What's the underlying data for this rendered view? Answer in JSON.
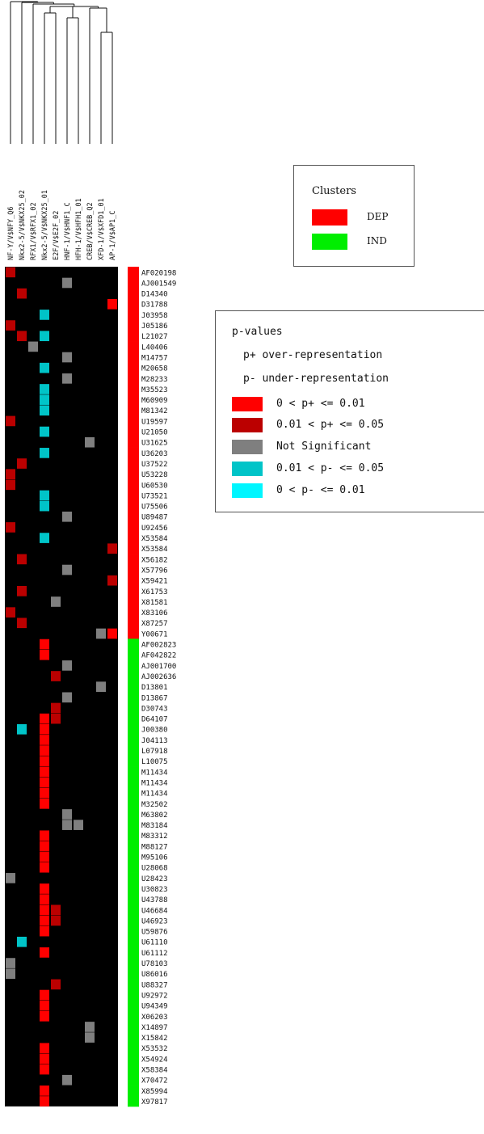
{
  "chart_data": {
    "type": "heatmap",
    "columns": [
      "NF-Y/V$NFY_Q6",
      "Nkx2-5/V$NKX25_02",
      "RFX1/V$RFX1_02",
      "Nkx2-5/V$NKX25_01",
      "E2F/V$E2F_02",
      "HNF-1/V$HNF1_C",
      "HFH-1/V$HFH1_01",
      "CREB/V$CREB_Q2",
      "XFD-1/V$XFD1_01",
      "AP-1/V$AP1_C"
    ],
    "rows": [
      "AF020198",
      "AJ001549",
      "D14340",
      "D31788",
      "J03958",
      "J05186",
      "L21027",
      "L40406",
      "M14757",
      "M20658",
      "M28233",
      "M35523",
      "M60909",
      "M81342",
      "U19597",
      "U21050",
      "U31625",
      "U36203",
      "U37522",
      "U53228",
      "U60530",
      "U73521",
      "U75506",
      "U89487",
      "U92456",
      "X53584",
      "X53584",
      "X56182",
      "X57796",
      "X59421",
      "X61753",
      "X81581",
      "X83106",
      "X87257",
      "Y00671",
      "AF002823",
      "AF042822",
      "AJ001700",
      "AJ002636",
      "D13801",
      "D13867",
      "D30743",
      "D64107",
      "J00380",
      "J04113",
      "L07918",
      "L10075",
      "M11434",
      "M11434",
      "M11434",
      "M32502",
      "M63802",
      "M83184",
      "M83312",
      "M88127",
      "M95106",
      "U28068",
      "U28423",
      "U30823",
      "U43788",
      "U46684",
      "U46923",
      "U59876",
      "U61110",
      "U61112",
      "U78103",
      "U86016",
      "U88327",
      "U92972",
      "U94349",
      "X06203",
      "X14897",
      "X15842",
      "X53532",
      "X54924",
      "X58384",
      "X70472",
      "X85994",
      "X97817"
    ],
    "row_clusters": [
      "DEP",
      "DEP",
      "DEP",
      "DEP",
      "DEP",
      "DEP",
      "DEP",
      "DEP",
      "DEP",
      "DEP",
      "DEP",
      "DEP",
      "DEP",
      "DEP",
      "DEP",
      "DEP",
      "DEP",
      "DEP",
      "DEP",
      "DEP",
      "DEP",
      "DEP",
      "DEP",
      "DEP",
      "DEP",
      "DEP",
      "DEP",
      "DEP",
      "DEP",
      "DEP",
      "DEP",
      "DEP",
      "DEP",
      "DEP",
      "DEP",
      "IND",
      "IND",
      "IND",
      "IND",
      "IND",
      "IND",
      "IND",
      "IND",
      "IND",
      "IND",
      "IND",
      "IND",
      "IND",
      "IND",
      "IND",
      "IND",
      "IND",
      "IND",
      "IND",
      "IND",
      "IND",
      "IND",
      "IND",
      "IND",
      "IND",
      "IND",
      "IND",
      "IND",
      "IND",
      "IND",
      "IND",
      "IND",
      "IND",
      "IND",
      "IND",
      "IND",
      "IND",
      "IND",
      "IND",
      "IND",
      "IND",
      "IND",
      "IND",
      "IND"
    ],
    "categories_note": "cell codes: 0 none, 1 = 0<p+<=0.01, 2 = 0.01<p+<=0.05, 3 = not significant, 4 = 0.01<p-<=0.05, 5 = 0<p-<=0.01",
    "cells": [
      [
        2,
        0,
        0,
        0,
        0,
        0,
        0,
        0,
        0,
        0
      ],
      [
        0,
        0,
        0,
        0,
        0,
        3,
        0,
        0,
        0,
        0
      ],
      [
        0,
        2,
        0,
        0,
        0,
        0,
        0,
        0,
        0,
        0
      ],
      [
        0,
        0,
        0,
        0,
        0,
        0,
        0,
        0,
        0,
        1
      ],
      [
        0,
        0,
        0,
        4,
        0,
        0,
        0,
        0,
        0,
        0
      ],
      [
        2,
        0,
        0,
        0,
        0,
        0,
        0,
        0,
        0,
        0
      ],
      [
        0,
        2,
        0,
        4,
        0,
        0,
        0,
        0,
        0,
        0
      ],
      [
        0,
        0,
        3,
        0,
        0,
        0,
        0,
        0,
        0,
        0
      ],
      [
        0,
        0,
        0,
        0,
        0,
        3,
        0,
        0,
        0,
        0
      ],
      [
        0,
        0,
        0,
        4,
        0,
        0,
        0,
        0,
        0,
        0
      ],
      [
        0,
        0,
        0,
        0,
        0,
        3,
        0,
        0,
        0,
        0
      ],
      [
        0,
        0,
        0,
        4,
        0,
        0,
        0,
        0,
        0,
        0
      ],
      [
        0,
        0,
        0,
        4,
        0,
        0,
        0,
        0,
        0,
        0
      ],
      [
        0,
        0,
        0,
        4,
        0,
        0,
        0,
        0,
        0,
        0
      ],
      [
        2,
        0,
        0,
        0,
        0,
        0,
        0,
        0,
        0,
        0
      ],
      [
        0,
        0,
        0,
        4,
        0,
        0,
        0,
        0,
        0,
        0
      ],
      [
        0,
        0,
        0,
        0,
        0,
        0,
        0,
        3,
        0,
        0
      ],
      [
        0,
        0,
        0,
        4,
        0,
        0,
        0,
        0,
        0,
        0
      ],
      [
        0,
        2,
        0,
        0,
        0,
        0,
        0,
        0,
        0,
        0
      ],
      [
        2,
        0,
        0,
        0,
        0,
        0,
        0,
        0,
        0,
        0
      ],
      [
        2,
        0,
        0,
        0,
        0,
        0,
        0,
        0,
        0,
        0
      ],
      [
        0,
        0,
        0,
        4,
        0,
        0,
        0,
        0,
        0,
        0
      ],
      [
        0,
        0,
        0,
        4,
        0,
        0,
        0,
        0,
        0,
        0
      ],
      [
        0,
        0,
        0,
        0,
        0,
        3,
        0,
        0,
        0,
        0
      ],
      [
        2,
        0,
        0,
        0,
        0,
        0,
        0,
        0,
        0,
        0
      ],
      [
        0,
        0,
        0,
        4,
        0,
        0,
        0,
        0,
        0,
        0
      ],
      [
        0,
        0,
        0,
        0,
        0,
        0,
        0,
        0,
        0,
        2
      ],
      [
        0,
        2,
        0,
        0,
        0,
        0,
        0,
        0,
        0,
        0
      ],
      [
        0,
        0,
        0,
        0,
        0,
        3,
        0,
        0,
        0,
        0
      ],
      [
        0,
        0,
        0,
        0,
        0,
        0,
        0,
        0,
        0,
        2
      ],
      [
        0,
        2,
        0,
        0,
        0,
        0,
        0,
        0,
        0,
        0
      ],
      [
        0,
        0,
        0,
        0,
        3,
        0,
        0,
        0,
        0,
        0
      ],
      [
        2,
        0,
        0,
        0,
        0,
        0,
        0,
        0,
        0,
        0
      ],
      [
        0,
        2,
        0,
        0,
        0,
        0,
        0,
        0,
        0,
        0
      ],
      [
        0,
        0,
        0,
        0,
        0,
        0,
        0,
        0,
        3,
        1
      ],
      [
        0,
        0,
        0,
        1,
        0,
        0,
        0,
        0,
        0,
        0
      ],
      [
        0,
        0,
        0,
        1,
        0,
        0,
        0,
        0,
        0,
        0
      ],
      [
        0,
        0,
        0,
        0,
        0,
        3,
        0,
        0,
        0,
        0
      ],
      [
        0,
        0,
        0,
        0,
        2,
        0,
        0,
        0,
        0,
        0
      ],
      [
        0,
        0,
        0,
        0,
        0,
        0,
        0,
        0,
        3,
        0
      ],
      [
        0,
        0,
        0,
        0,
        0,
        3,
        0,
        0,
        0,
        0
      ],
      [
        0,
        0,
        0,
        0,
        2,
        0,
        0,
        0,
        0,
        0
      ],
      [
        0,
        0,
        0,
        1,
        2,
        0,
        0,
        0,
        0,
        0
      ],
      [
        0,
        4,
        0,
        1,
        0,
        0,
        0,
        0,
        0,
        0
      ],
      [
        0,
        0,
        0,
        1,
        0,
        0,
        0,
        0,
        0,
        0
      ],
      [
        0,
        0,
        0,
        1,
        0,
        0,
        0,
        0,
        0,
        0
      ],
      [
        0,
        0,
        0,
        1,
        0,
        0,
        0,
        0,
        0,
        0
      ],
      [
        0,
        0,
        0,
        1,
        0,
        0,
        0,
        0,
        0,
        0
      ],
      [
        0,
        0,
        0,
        1,
        0,
        0,
        0,
        0,
        0,
        0
      ],
      [
        0,
        0,
        0,
        1,
        0,
        0,
        0,
        0,
        0,
        0
      ],
      [
        0,
        0,
        0,
        1,
        0,
        0,
        0,
        0,
        0,
        0
      ],
      [
        0,
        0,
        0,
        0,
        0,
        3,
        0,
        0,
        0,
        0
      ],
      [
        0,
        0,
        0,
        0,
        0,
        3,
        3,
        0,
        0,
        0
      ],
      [
        0,
        0,
        0,
        1,
        0,
        0,
        0,
        0,
        0,
        0
      ],
      [
        0,
        0,
        0,
        1,
        0,
        0,
        0,
        0,
        0,
        0
      ],
      [
        0,
        0,
        0,
        1,
        0,
        0,
        0,
        0,
        0,
        0
      ],
      [
        0,
        0,
        0,
        1,
        0,
        0,
        0,
        0,
        0,
        0
      ],
      [
        3,
        0,
        0,
        0,
        0,
        0,
        0,
        0,
        0,
        0
      ],
      [
        0,
        0,
        0,
        1,
        0,
        0,
        0,
        0,
        0,
        0
      ],
      [
        0,
        0,
        0,
        1,
        0,
        0,
        0,
        0,
        0,
        0
      ],
      [
        0,
        0,
        0,
        1,
        2,
        0,
        0,
        0,
        0,
        0
      ],
      [
        0,
        0,
        0,
        1,
        2,
        0,
        0,
        0,
        0,
        0
      ],
      [
        0,
        0,
        0,
        1,
        0,
        0,
        0,
        0,
        0,
        0
      ],
      [
        0,
        4,
        0,
        0,
        0,
        0,
        0,
        0,
        0,
        0
      ],
      [
        0,
        0,
        0,
        1,
        0,
        0,
        0,
        0,
        0,
        0
      ],
      [
        3,
        0,
        0,
        0,
        0,
        0,
        0,
        0,
        0,
        0
      ],
      [
        3,
        0,
        0,
        0,
        0,
        0,
        0,
        0,
        0,
        0
      ],
      [
        0,
        0,
        0,
        0,
        2,
        0,
        0,
        0,
        0,
        0
      ],
      [
        0,
        0,
        0,
        1,
        0,
        0,
        0,
        0,
        0,
        0
      ],
      [
        0,
        0,
        0,
        1,
        0,
        0,
        0,
        0,
        0,
        0
      ],
      [
        0,
        0,
        0,
        1,
        0,
        0,
        0,
        0,
        0,
        0
      ],
      [
        0,
        0,
        0,
        0,
        0,
        0,
        0,
        3,
        0,
        0
      ],
      [
        0,
        0,
        0,
        0,
        0,
        0,
        0,
        3,
        0,
        0
      ],
      [
        0,
        0,
        0,
        1,
        0,
        0,
        0,
        0,
        0,
        0
      ],
      [
        0,
        0,
        0,
        1,
        0,
        0,
        0,
        0,
        0,
        0
      ],
      [
        0,
        0,
        0,
        1,
        0,
        0,
        0,
        0,
        0,
        0
      ],
      [
        0,
        0,
        0,
        0,
        0,
        3,
        0,
        0,
        0,
        0
      ],
      [
        0,
        0,
        0,
        1,
        0,
        0,
        0,
        0,
        0,
        0
      ],
      [
        0,
        0,
        0,
        1,
        0,
        0,
        0,
        0,
        0,
        0
      ]
    ],
    "colors": {
      "background": "#000000",
      "p_plus_001": "#ff0000",
      "p_plus_005": "#bb0000",
      "not_significant": "#7f7f7f",
      "p_minus_005": "#00c4c8",
      "p_minus_001": "#00f6ff",
      "DEP": "#ff0000",
      "IND": "#00ee00"
    },
    "dendrogram": "hierarchical clustering tree over columns (top)",
    "legend_clusters": {
      "title": "Clusters",
      "items": [
        {
          "label": "DEP",
          "color": "#ff0000"
        },
        {
          "label": "IND",
          "color": "#00ee00"
        }
      ]
    },
    "legend_pvalues": {
      "title": "p-values",
      "notes": [
        "p+ over-representation",
        "p- under-representation"
      ],
      "items": [
        {
          "label": "0 < p+ <= 0.01",
          "color": "#ff0000"
        },
        {
          "label": "0.01 < p+ <= 0.05",
          "color": "#bb0000"
        },
        {
          "label": "Not Significant",
          "color": "#7f7f7f"
        },
        {
          "label": "0.01 < p- <= 0.05",
          "color": "#00c4c8"
        },
        {
          "label": "0 < p- <= 0.01",
          "color": "#00f6ff"
        }
      ]
    }
  }
}
